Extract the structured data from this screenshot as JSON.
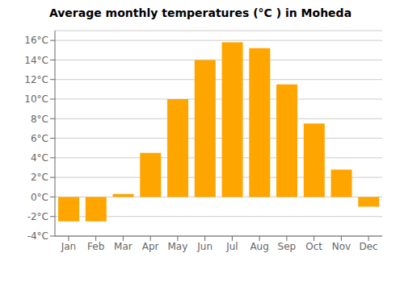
{
  "chart_data": {
    "type": "bar",
    "title": "Average monthly temperatures (°C ) in Moheda",
    "categories": [
      "Jan",
      "Feb",
      "Mar",
      "Apr",
      "May",
      "Jun",
      "Jul",
      "Aug",
      "Sep",
      "Oct",
      "Nov",
      "Dec"
    ],
    "values": [
      -2.5,
      -2.5,
      0.3,
      4.5,
      10.0,
      14.0,
      15.8,
      15.2,
      11.5,
      7.5,
      2.8,
      -1.0
    ],
    "color": "#FFA500",
    "ylim": [
      -4,
      17
    ],
    "yticks": [
      {
        "value": -4,
        "label": "-4°C"
      },
      {
        "value": -2,
        "label": "-2°C"
      },
      {
        "value": 0,
        "label": "0°C"
      },
      {
        "value": 2,
        "label": "2°C"
      },
      {
        "value": 4,
        "label": "4°C"
      },
      {
        "value": 6,
        "label": "6°C"
      },
      {
        "value": 8,
        "label": "8°C"
      },
      {
        "value": 10,
        "label": "10°C"
      },
      {
        "value": 12,
        "label": "12°C"
      },
      {
        "value": 14,
        "label": "14°C"
      },
      {
        "value": 16,
        "label": "16°C"
      }
    ],
    "grid": true
  }
}
